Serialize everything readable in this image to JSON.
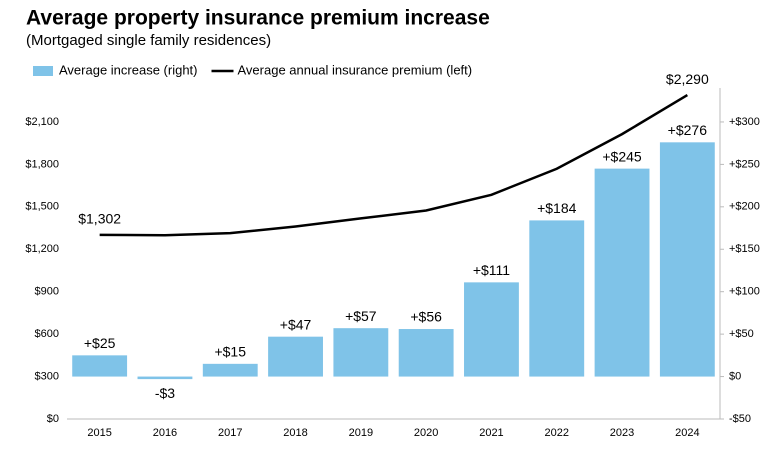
{
  "chart_data": {
    "type": "combo",
    "title": "Average property insurance premium increase",
    "subtitle": "(Mortgaged single family residences)",
    "categories": [
      "2015",
      "2016",
      "2017",
      "2018",
      "2019",
      "2020",
      "2021",
      "2022",
      "2023",
      "2024"
    ],
    "series": [
      {
        "name": "Average increase (right)",
        "type": "bar",
        "axis": "y2",
        "color": "#7fc3e8",
        "values": [
          25,
          -3,
          15,
          47,
          57,
          56,
          111,
          184,
          245,
          276
        ],
        "value_labels": [
          "+$25",
          "-$3",
          "+$15",
          "+$47",
          "+$57",
          "+$56",
          "+$111",
          "+$184",
          "+$245",
          "+$276"
        ]
      },
      {
        "name": "Average annual insurance premium (left)",
        "type": "line",
        "color": "#000000",
        "values": [
          1302,
          1299,
          1314,
          1361,
          1418,
          1474,
          1585,
          1769,
          2014,
          2290
        ],
        "value_labels": [
          "$1,302",
          null,
          null,
          null,
          null,
          null,
          null,
          null,
          null,
          "$2,290"
        ]
      }
    ],
    "ylim": [
      0,
      2340
    ],
    "yticks": [
      {
        "value": 0,
        "label": "$0"
      },
      {
        "value": 300,
        "label": "$300"
      },
      {
        "value": 600,
        "label": "$600"
      },
      {
        "value": 900,
        "label": "$900"
      },
      {
        "value": 1200,
        "label": "$1,200"
      },
      {
        "value": 1500,
        "label": "$1,500"
      },
      {
        "value": 1800,
        "label": "$1,800"
      },
      {
        "value": 2100,
        "label": "$2,100"
      }
    ],
    "y2lim": [
      -50,
      340
    ],
    "y2ticks": [
      {
        "value": -50,
        "label": "-$50"
      },
      {
        "value": 0,
        "label": "$0"
      },
      {
        "value": 50,
        "label": "+$50"
      },
      {
        "value": 100,
        "label": "+$100"
      },
      {
        "value": 150,
        "label": "+$150"
      },
      {
        "value": 200,
        "label": "+$200"
      },
      {
        "value": 250,
        "label": "+$250"
      },
      {
        "value": 300,
        "label": "+$300"
      }
    ],
    "legend": "top-left",
    "grid": false
  }
}
